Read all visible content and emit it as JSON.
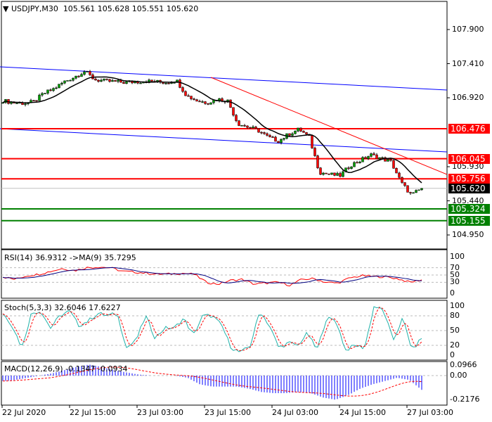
{
  "header": {
    "symbol": "USDJPY,M30",
    "ohlc": "105.561 105.628 105.551 105.620"
  },
  "colors": {
    "up": "#00a000",
    "down": "#ff0000",
    "level_red": "#ff0000",
    "level_green": "#008000",
    "channel": "#0000ff",
    "trend": "#ff0000",
    "rsi": "#ff0000",
    "rsi_ma": "#000080",
    "stoch_k": "#20b2aa",
    "stoch_d": "#ff0000",
    "macd": "#0000ff",
    "macd_signal": "#ff0000"
  },
  "chart_data": {
    "type": "candlestick",
    "price_axis": {
      "range": [
        104.85,
        108.3
      ],
      "ticks": [
        "107.900",
        "107.410",
        "106.920",
        "105.930",
        "105.440",
        "104.950"
      ]
    },
    "time_labels": [
      "22 Jul 2020",
      "22 Jul 15:00",
      "23 Jul 03:00",
      "23 Jul 15:00",
      "24 Jul 03:00",
      "24 Jul 15:00",
      "27 Jul 03:00"
    ],
    "close_approx": [
      106.88,
      106.85,
      106.84,
      106.86,
      106.98,
      107.05,
      107.15,
      107.22,
      107.3,
      107.18,
      107.16,
      107.15,
      107.14,
      107.15,
      107.16,
      107.15,
      107.14,
      107.17,
      106.95,
      106.88,
      106.85,
      106.9,
      106.88,
      106.55,
      106.5,
      106.45,
      106.35,
      106.3,
      106.4,
      106.47,
      106.35,
      105.85,
      105.82,
      105.8,
      105.95,
      106.02,
      106.1,
      106.05,
      106.0,
      105.7,
      105.52,
      105.62
    ],
    "levels": [
      {
        "label": "106.476",
        "price": 106.476,
        "kind": "resistance"
      },
      {
        "label": "106.045",
        "price": 106.045,
        "kind": "resistance"
      },
      {
        "label": "105.756",
        "price": 105.756,
        "kind": "resistance"
      },
      {
        "label": "105.324",
        "price": 105.324,
        "kind": "support"
      },
      {
        "label": "105.155",
        "price": 105.155,
        "kind": "support"
      }
    ],
    "current": {
      "label": "105.620",
      "price": 105.62
    },
    "rsi": {
      "title": "RSI(14) 36.9312  ->MA(9) 35.7295",
      "ticks": [
        "100",
        "70",
        "50",
        "30",
        "0"
      ],
      "values": [
        45,
        38,
        48,
        52,
        60,
        68,
        62,
        70,
        72,
        70,
        60,
        58,
        55,
        52,
        53,
        55,
        52,
        30,
        25,
        35,
        38,
        25,
        28,
        30,
        22,
        38,
        40,
        30,
        28,
        42,
        48,
        46,
        45,
        40,
        30,
        37
      ]
    },
    "stoch": {
      "title": "Stoch(5,3,3) 32.6046 17.6227",
      "ticks": [
        "100",
        "80",
        "50",
        "20",
        "0"
      ],
      "k": [
        85,
        60,
        15,
        85,
        90,
        55,
        80,
        90,
        60,
        70,
        85,
        80,
        85,
        15,
        30,
        80,
        35,
        55,
        55,
        75,
        40,
        80,
        80,
        60,
        15,
        5,
        20,
        90,
        60,
        15,
        25,
        20,
        45,
        10,
        75,
        70,
        10,
        20,
        15,
        100,
        90,
        30,
        75,
        10,
        35
      ]
    },
    "macd": {
      "title": "MACD(12,26,9) -0.1347 -0.0934",
      "ticks": [
        "0.0966",
        "0.00",
        "-0.2176"
      ],
      "values": [
        -0.05,
        -0.04,
        -0.02,
        0,
        0.02,
        0.05,
        0.08,
        0.1,
        0.08,
        0.05,
        0.03,
        0.01,
        0,
        0,
        0,
        -0.02,
        -0.08,
        -0.1,
        -0.1,
        -0.1,
        -0.12,
        -0.15,
        -0.16,
        -0.16,
        -0.15,
        -0.16,
        -0.2,
        -0.22,
        -0.18,
        -0.12,
        -0.08,
        -0.05,
        -0.02,
        -0.04,
        -0.13
      ]
    }
  }
}
